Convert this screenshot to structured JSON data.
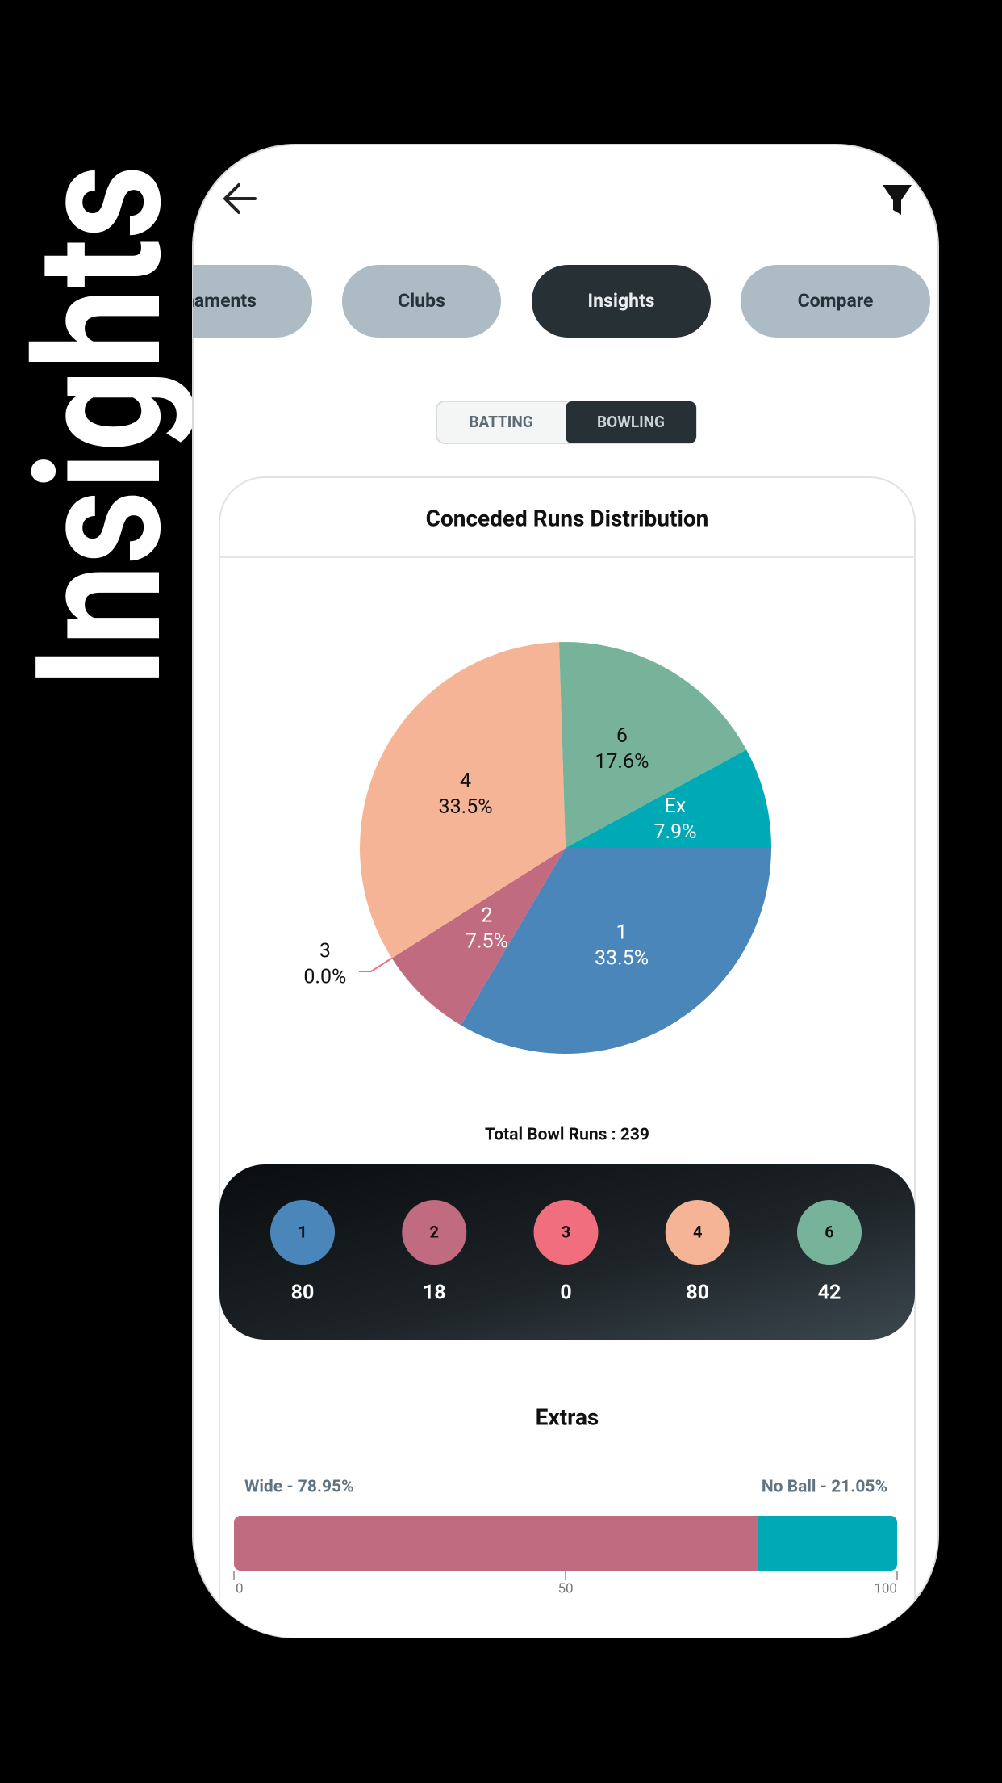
{
  "side_title": "Insights",
  "tabs": [
    "Tournaments",
    "Clubs",
    "Insights",
    "Compare"
  ],
  "active_tab": 2,
  "toggle": {
    "options": [
      "BATTING",
      "BOWLING"
    ],
    "active": 1
  },
  "chart_data": {
    "type": "pie",
    "title": "Conceded Runs Distribution",
    "categories": [
      "1",
      "2",
      "3",
      "4",
      "6",
      "Ex"
    ],
    "values": [
      33.5,
      7.5,
      0.0,
      33.5,
      17.6,
      7.9
    ],
    "value_labels": [
      "33.5%",
      "7.5%",
      "0.0%",
      "33.5%",
      "17.6%",
      "7.9%"
    ],
    "colors": [
      "#4a86b9",
      "#c06b80",
      "#f06e7e",
      "#f6b497",
      "#77b39a",
      "#00a9b6"
    ]
  },
  "total": "Total Bowl Runs : 239",
  "run_counts": [
    {
      "label": "1",
      "value": 80,
      "color": "#4a86b9"
    },
    {
      "label": "2",
      "value": 18,
      "color": "#c06b80"
    },
    {
      "label": "3",
      "value": 0,
      "color": "#f06e7e"
    },
    {
      "label": "4",
      "value": 80,
      "color": "#f6b497"
    },
    {
      "label": "6",
      "value": 42,
      "color": "#77b39a"
    }
  ],
  "extras": {
    "type": "stacked-bar",
    "title": "Extras",
    "segments": [
      {
        "label": "Wide - 78.95%",
        "value": 78.95,
        "color": "#c06b80"
      },
      {
        "label": "No Ball - 21.05%",
        "value": 21.05,
        "color": "#00a9b6"
      }
    ],
    "xlim": [
      0,
      100
    ],
    "xticks": [
      0,
      50,
      100
    ]
  }
}
